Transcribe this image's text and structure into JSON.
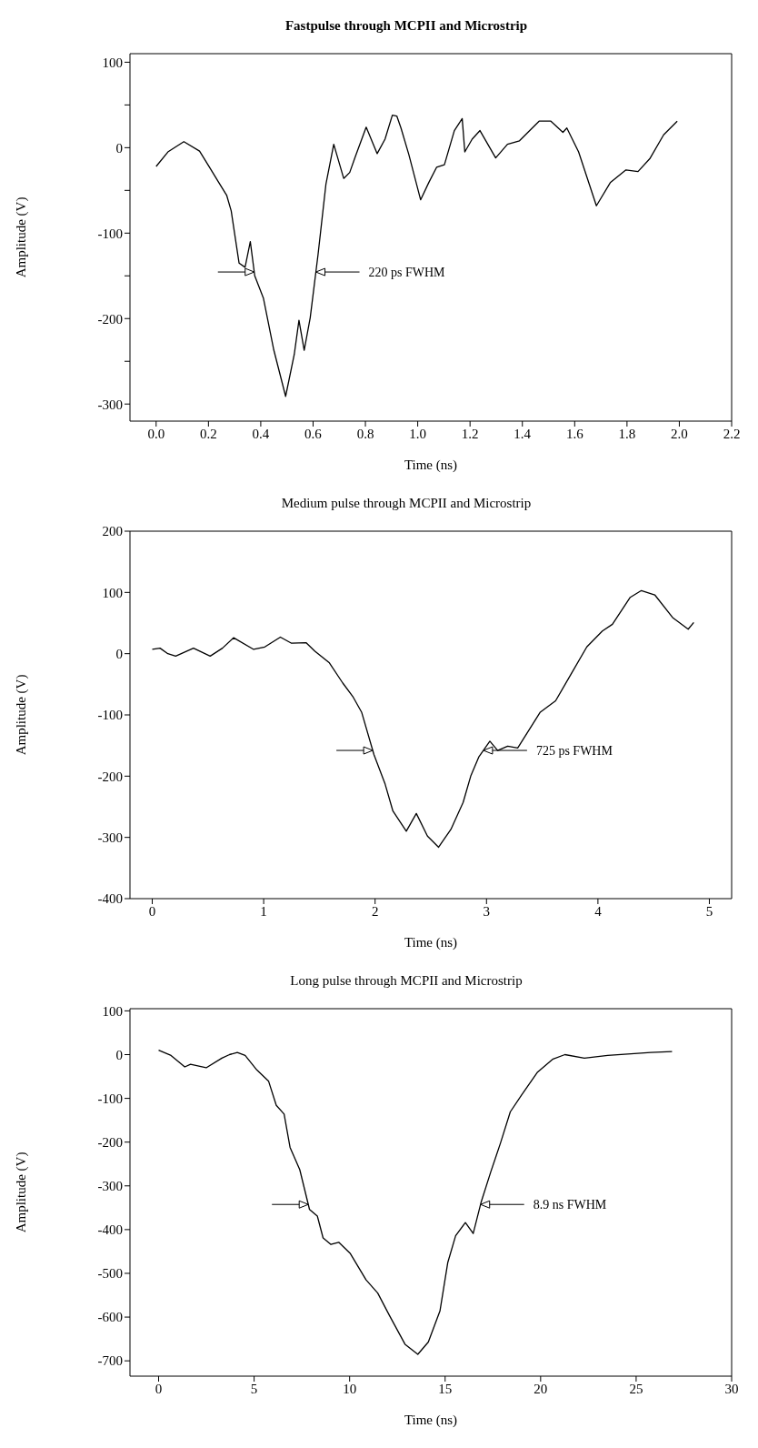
{
  "chart_data": [
    {
      "type": "line",
      "title": "Fastpulse through MCPII and Microstrip",
      "xlabel": "Time (ns)",
      "ylabel": "Amplitude (V)",
      "marker": "none",
      "line_style": "solid",
      "xlim": [
        -0.1,
        2.2
      ],
      "xticks": [
        {
          "value": 0,
          "label": "0.0"
        },
        {
          "value": 0.2,
          "label": "0.2"
        },
        {
          "value": 0.4,
          "label": "0.4"
        },
        {
          "value": 0.6,
          "label": "0.6"
        },
        {
          "value": 0.8,
          "label": "0.8"
        },
        {
          "value": 1,
          "label": "1.0"
        },
        {
          "value": 1.2,
          "label": "1.2"
        },
        {
          "value": 1.4,
          "label": "1.4"
        },
        {
          "value": 1.6,
          "label": "1.6"
        },
        {
          "value": 1.8,
          "label": "1.8"
        },
        {
          "value": 2,
          "label": "2.0"
        },
        {
          "value": 2.2,
          "label": "2.2"
        }
      ],
      "ylim": [
        -320,
        110
      ],
      "yticks": [
        100,
        {
          "value": 50,
          "label": null
        },
        0,
        {
          "value": -50,
          "label": null
        },
        -100,
        {
          "value": -150,
          "label": null
        },
        -200,
        {
          "value": -250,
          "label": null
        },
        -300
      ],
      "annotations": [
        "220 ps FWHM"
      ],
      "series": [
        {
          "color": "#000000",
          "x": [
            0,
            0.045,
            0.106,
            0.166,
            0.204,
            0.24,
            0.27,
            0.287,
            0.317,
            0.34,
            0.36,
            0.377,
            0.41,
            0.45,
            0.495,
            0.528,
            0.546,
            0.566,
            0.589,
            0.619,
            0.649,
            0.679,
            0.717,
            0.74,
            0.762,
            0.803,
            0.845,
            0.875,
            0.903,
            0.92,
            0.936,
            0.966,
            1.011,
            1.042,
            1.072,
            1.102,
            1.14,
            1.17,
            1.18,
            1.208,
            1.238,
            1.298,
            1.343,
            1.389,
            1.464,
            1.509,
            1.555,
            1.57,
            1.615,
            1.683,
            1.736,
            1.796,
            1.842,
            1.887,
            1.94,
            1.992
          ],
          "values": [
            -22,
            -5,
            7,
            -4,
            -23,
            -41,
            -56,
            -74,
            -135,
            -140,
            -110,
            -150,
            -176,
            -237,
            -291,
            -242,
            -202,
            -237,
            -199,
            -125,
            -43,
            4,
            -36,
            -29,
            -10,
            24,
            -7,
            10,
            38,
            37,
            23,
            -8,
            -61,
            -41,
            -23,
            -20,
            20,
            34,
            -5,
            10,
            20,
            -12,
            4,
            8,
            31,
            31,
            18,
            23,
            -5,
            -68,
            -41,
            -26,
            -28,
            -13,
            15,
            31
          ]
        }
      ]
    },
    {
      "type": "line",
      "title": "Medium pulse through MCPII and Microstrip",
      "xlabel": "Time (ns)",
      "ylabel": "Amplitude (V)",
      "marker": "none",
      "line_style": "solid",
      "xlim": [
        -0.2,
        5.2
      ],
      "xticks": [
        0,
        1,
        2,
        3,
        4,
        5
      ],
      "ylim": [
        -400,
        200
      ],
      "yticks": [
        200,
        100,
        0,
        -100,
        -200,
        -300,
        -400
      ],
      "annotations": [
        "725 ps FWHM"
      ],
      "series": [
        {
          "color": "#000000",
          "x": [
            0,
            0.07,
            0.14,
            0.21,
            0.37,
            0.52,
            0.63,
            0.73,
            0.91,
            1.01,
            1.15,
            1.25,
            1.38,
            1.46,
            1.59,
            1.71,
            1.8,
            1.88,
            1.99,
            2.09,
            2.16,
            2.28,
            2.37,
            2.47,
            2.57,
            2.68,
            2.79,
            2.86,
            2.93,
            3.03,
            3.1,
            3.19,
            3.28,
            3.48,
            3.62,
            3.76,
            3.9,
            4.04,
            4.13,
            4.29,
            4.39,
            4.51,
            4.67,
            4.81,
            4.86
          ],
          "values": [
            7,
            9,
            0,
            -4,
            9,
            -4,
            9,
            26,
            7,
            11,
            27,
            17,
            18,
            4,
            -15,
            -48,
            -70,
            -96,
            -165,
            -213,
            -257,
            -290,
            -261,
            -298,
            -316,
            -287,
            -243,
            -199,
            -169,
            -143,
            -158,
            -151,
            -154,
            -96,
            -77,
            -33,
            11,
            37,
            48,
            92,
            103,
            96,
            59,
            40,
            51
          ]
        }
      ]
    },
    {
      "type": "line",
      "title": "Long pulse through MCPII and Microstrip",
      "xlabel": "Time (ns)",
      "ylabel": "Amplitude (V)",
      "marker": "none",
      "line_style": "solid",
      "xlim": [
        -1.5,
        30
      ],
      "xticks": [
        0,
        5,
        10,
        15,
        20,
        25,
        30
      ],
      "ylim": [
        -735,
        105
      ],
      "yticks": [
        100,
        0,
        -100,
        -200,
        -300,
        -400,
        -500,
        -600,
        -700
      ],
      "annotations": [
        "8.9 ns FWHM"
      ],
      "series": [
        {
          "color": "#000000",
          "x": [
            0,
            0.65,
            1.37,
            1.67,
            2.49,
            3.31,
            3.71,
            4.12,
            4.53,
            5.14,
            5.76,
            6.16,
            6.57,
            6.88,
            7.39,
            7.9,
            8.31,
            8.61,
            9.02,
            9.43,
            10.04,
            10.86,
            11.47,
            12.08,
            12.9,
            13.57,
            14.12,
            14.73,
            15.14,
            15.55,
            16.06,
            16.47,
            16.88,
            17.39,
            17.9,
            18.41,
            19.02,
            19.84,
            20.65,
            21.27,
            22.29,
            23.51,
            24.73,
            25.76,
            26.88
          ],
          "values": [
            10,
            -2,
            -28,
            -22,
            -30,
            -8,
            0,
            5,
            -2,
            -35,
            -61,
            -116,
            -136,
            -212,
            -263,
            -354,
            -369,
            -419,
            -434,
            -429,
            -455,
            -515,
            -545,
            -596,
            -662,
            -685,
            -657,
            -586,
            -475,
            -414,
            -384,
            -409,
            -338,
            -268,
            -202,
            -131,
            -91,
            -40,
            -10,
            0,
            -8,
            -2,
            2,
            5,
            7
          ]
        }
      ]
    }
  ]
}
